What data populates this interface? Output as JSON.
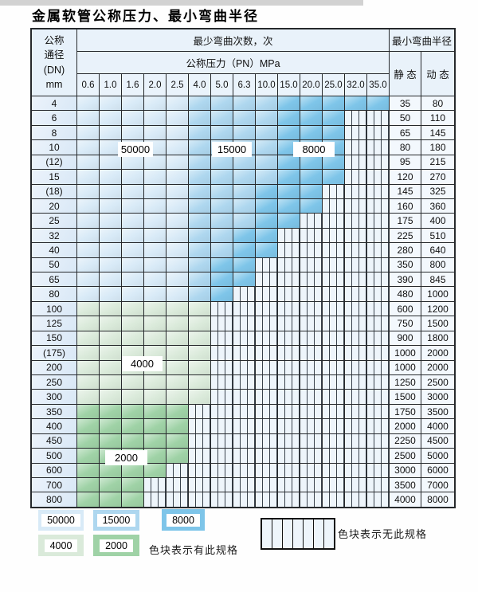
{
  "page": {
    "title": "金属软管公称压力、最小弯曲半径"
  },
  "table_header": {
    "dn_lines": [
      "公称",
      "通径",
      "(DN)",
      "mm"
    ],
    "cycles": "最少弯曲次数，次",
    "pressure": "公称压力（PN）MPa",
    "radius": "最小弯曲半径",
    "static": "静 态",
    "dynamic": "动 态"
  },
  "overlays": {
    "l50000": "50000",
    "l15000": "15000",
    "l8000": "8000",
    "l4000": "4000",
    "l2000": "2000"
  },
  "legend": {
    "swatches": [
      {
        "label": "50000",
        "zone": "c50000"
      },
      {
        "label": "15000",
        "zone": "c15000"
      },
      {
        "label": "8000",
        "zone": "c8000"
      },
      {
        "label": "4000",
        "zone": "c4000"
      },
      {
        "label": "2000",
        "zone": "c2000"
      }
    ],
    "has_spec_note": "色块表示有此规格",
    "no_spec_note": "色块表示无此规格"
  },
  "zone_colors": {
    "c50000": "#d8eaf7",
    "c15000": "#aed7ef",
    "c8000": "#7ec5e9",
    "c4000": "#daeada",
    "c2000": "#9fd2a6"
  },
  "chart_data": {
    "type": "table",
    "title": "金属软管公称压力、最小弯曲半径",
    "pn_columns_mpa": [
      "0.6",
      "1.0",
      "1.6",
      "2.0",
      "2.5",
      "4.0",
      "5.0",
      "6.3",
      "10.0",
      "15.0",
      "20.0",
      "25.0",
      "32.0",
      "35.0"
    ],
    "cycle_levels": [
      "50000",
      "15000",
      "8000",
      "4000",
      "2000"
    ],
    "legend_meaning": {
      "colored": "色块表示有此规格",
      "blank": "色块表示无此规格"
    },
    "rows": [
      {
        "dn": "4",
        "static": "35",
        "dynamic": "80",
        "zones": [
          [
            "c50000",
            0,
            4
          ],
          [
            "c15000",
            5,
            8
          ],
          [
            "c8000",
            9,
            13
          ]
        ]
      },
      {
        "dn": "6",
        "static": "50",
        "dynamic": "110",
        "zones": [
          [
            "c50000",
            0,
            4
          ],
          [
            "c15000",
            5,
            8
          ],
          [
            "c8000",
            9,
            11
          ]
        ]
      },
      {
        "dn": "8",
        "static": "65",
        "dynamic": "145",
        "zones": [
          [
            "c50000",
            0,
            4
          ],
          [
            "c15000",
            5,
            8
          ],
          [
            "c8000",
            9,
            11
          ]
        ]
      },
      {
        "dn": "10",
        "static": "80",
        "dynamic": "180",
        "zones": [
          [
            "c50000",
            0,
            4
          ],
          [
            "c15000",
            5,
            8
          ],
          [
            "c8000",
            9,
            11
          ]
        ]
      },
      {
        "dn": "(12)",
        "static": "95",
        "dynamic": "215",
        "zones": [
          [
            "c50000",
            0,
            4
          ],
          [
            "c15000",
            5,
            8
          ],
          [
            "c8000",
            9,
            11
          ]
        ]
      },
      {
        "dn": "15",
        "static": "120",
        "dynamic": "270",
        "zones": [
          [
            "c50000",
            0,
            4
          ],
          [
            "c15000",
            5,
            8
          ],
          [
            "c8000",
            9,
            11
          ]
        ]
      },
      {
        "dn": "(18)",
        "static": "145",
        "dynamic": "325",
        "zones": [
          [
            "c50000",
            0,
            4
          ],
          [
            "c15000",
            5,
            7
          ],
          [
            "c8000",
            8,
            10
          ]
        ]
      },
      {
        "dn": "20",
        "static": "160",
        "dynamic": "360",
        "zones": [
          [
            "c50000",
            0,
            4
          ],
          [
            "c15000",
            5,
            7
          ],
          [
            "c8000",
            8,
            10
          ]
        ]
      },
      {
        "dn": "25",
        "static": "175",
        "dynamic": "400",
        "zones": [
          [
            "c50000",
            0,
            4
          ],
          [
            "c15000",
            5,
            7
          ],
          [
            "c8000",
            8,
            9
          ]
        ]
      },
      {
        "dn": "32",
        "static": "225",
        "dynamic": "510",
        "zones": [
          [
            "c50000",
            0,
            4
          ],
          [
            "c15000",
            5,
            6
          ],
          [
            "c8000",
            7,
            8
          ]
        ]
      },
      {
        "dn": "40",
        "static": "280",
        "dynamic": "640",
        "zones": [
          [
            "c50000",
            0,
            4
          ],
          [
            "c15000",
            5,
            6
          ],
          [
            "c8000",
            7,
            8
          ]
        ]
      },
      {
        "dn": "50",
        "static": "350",
        "dynamic": "800",
        "zones": [
          [
            "c50000",
            0,
            4
          ],
          [
            "c15000",
            5,
            5
          ],
          [
            "c8000",
            6,
            7
          ]
        ]
      },
      {
        "dn": "65",
        "static": "390",
        "dynamic": "845",
        "zones": [
          [
            "c50000",
            0,
            4
          ],
          [
            "c15000",
            5,
            5
          ],
          [
            "c8000",
            6,
            7
          ]
        ]
      },
      {
        "dn": "80",
        "static": "480",
        "dynamic": "1000",
        "zones": [
          [
            "c50000",
            0,
            4
          ],
          [
            "c15000",
            5,
            5
          ],
          [
            "c8000",
            6,
            6
          ]
        ]
      },
      {
        "dn": "100",
        "static": "600",
        "dynamic": "1200",
        "zones": [
          [
            "c4000",
            0,
            5
          ]
        ]
      },
      {
        "dn": "125",
        "static": "750",
        "dynamic": "1500",
        "zones": [
          [
            "c4000",
            0,
            5
          ]
        ]
      },
      {
        "dn": "150",
        "static": "900",
        "dynamic": "1800",
        "zones": [
          [
            "c4000",
            0,
            5
          ]
        ]
      },
      {
        "dn": "(175)",
        "static": "1000",
        "dynamic": "2000",
        "zones": [
          [
            "c4000",
            0,
            5
          ]
        ]
      },
      {
        "dn": "200",
        "static": "1000",
        "dynamic": "2000",
        "zones": [
          [
            "c4000",
            0,
            5
          ]
        ]
      },
      {
        "dn": "250",
        "static": "1250",
        "dynamic": "2500",
        "zones": [
          [
            "c4000",
            0,
            5
          ]
        ]
      },
      {
        "dn": "300",
        "static": "1500",
        "dynamic": "3000",
        "zones": [
          [
            "c4000",
            0,
            5
          ]
        ]
      },
      {
        "dn": "350",
        "static": "1750",
        "dynamic": "3500",
        "zones": [
          [
            "c2000",
            0,
            4
          ]
        ]
      },
      {
        "dn": "400",
        "static": "2000",
        "dynamic": "4000",
        "zones": [
          [
            "c2000",
            0,
            4
          ]
        ]
      },
      {
        "dn": "450",
        "static": "2250",
        "dynamic": "4500",
        "zones": [
          [
            "c2000",
            0,
            4
          ]
        ]
      },
      {
        "dn": "500",
        "static": "2500",
        "dynamic": "5000",
        "zones": [
          [
            "c2000",
            0,
            4
          ]
        ]
      },
      {
        "dn": "600",
        "static": "3000",
        "dynamic": "6000",
        "zones": [
          [
            "c2000",
            0,
            3
          ]
        ]
      },
      {
        "dn": "700",
        "static": "3500",
        "dynamic": "7000",
        "zones": [
          [
            "c2000",
            0,
            2
          ]
        ]
      },
      {
        "dn": "800",
        "static": "4000",
        "dynamic": "8000",
        "zones": [
          [
            "c2000",
            0,
            2
          ]
        ]
      }
    ]
  }
}
